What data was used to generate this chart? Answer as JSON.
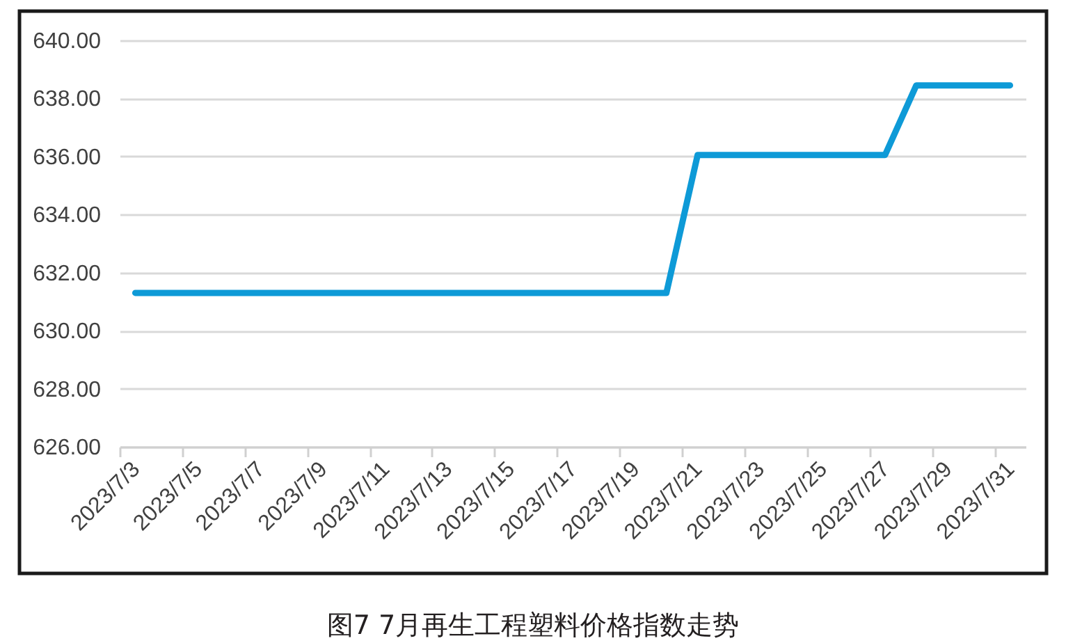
{
  "chart_data": {
    "type": "line",
    "title": "图7 7月再生工程塑料价格指数走势",
    "categories": [
      "2023/7/3",
      null,
      "2023/7/5",
      null,
      "2023/7/7",
      null,
      "2023/7/9",
      null,
      "2023/7/11",
      null,
      "2023/7/13",
      null,
      "2023/7/15",
      null,
      "2023/7/17",
      null,
      "2023/7/19",
      null,
      "2023/7/21",
      null,
      "2023/7/23",
      null,
      "2023/7/25",
      null,
      "2023/7/27",
      null,
      "2023/7/29",
      null,
      "2023/7/31"
    ],
    "series": [
      {
        "color": "#0e9ad7",
        "values": [
          631.3,
          631.3,
          631.3,
          631.3,
          631.3,
          631.3,
          631.3,
          631.3,
          631.3,
          631.3,
          631.3,
          631.3,
          631.3,
          631.3,
          631.3,
          631.3,
          631.3,
          631.3,
          636.05,
          636.05,
          636.05,
          636.05,
          636.05,
          636.05,
          636.05,
          638.45,
          638.45,
          638.45,
          638.45
        ]
      }
    ],
    "ylim": [
      626,
      640
    ],
    "yticks": [
      {
        "value": 626,
        "label": "626.00"
      },
      {
        "value": 628,
        "label": "628.00"
      },
      {
        "value": 630,
        "label": "630.00"
      },
      {
        "value": 632,
        "label": "632.00"
      },
      {
        "value": 634,
        "label": "634.00"
      },
      {
        "value": 636,
        "label": "636.00"
      },
      {
        "value": 638,
        "label": "638.00"
      },
      {
        "value": 640,
        "label": "640.00"
      }
    ],
    "grid": "y",
    "legend": false,
    "marker": "none",
    "line_style": "solid"
  }
}
